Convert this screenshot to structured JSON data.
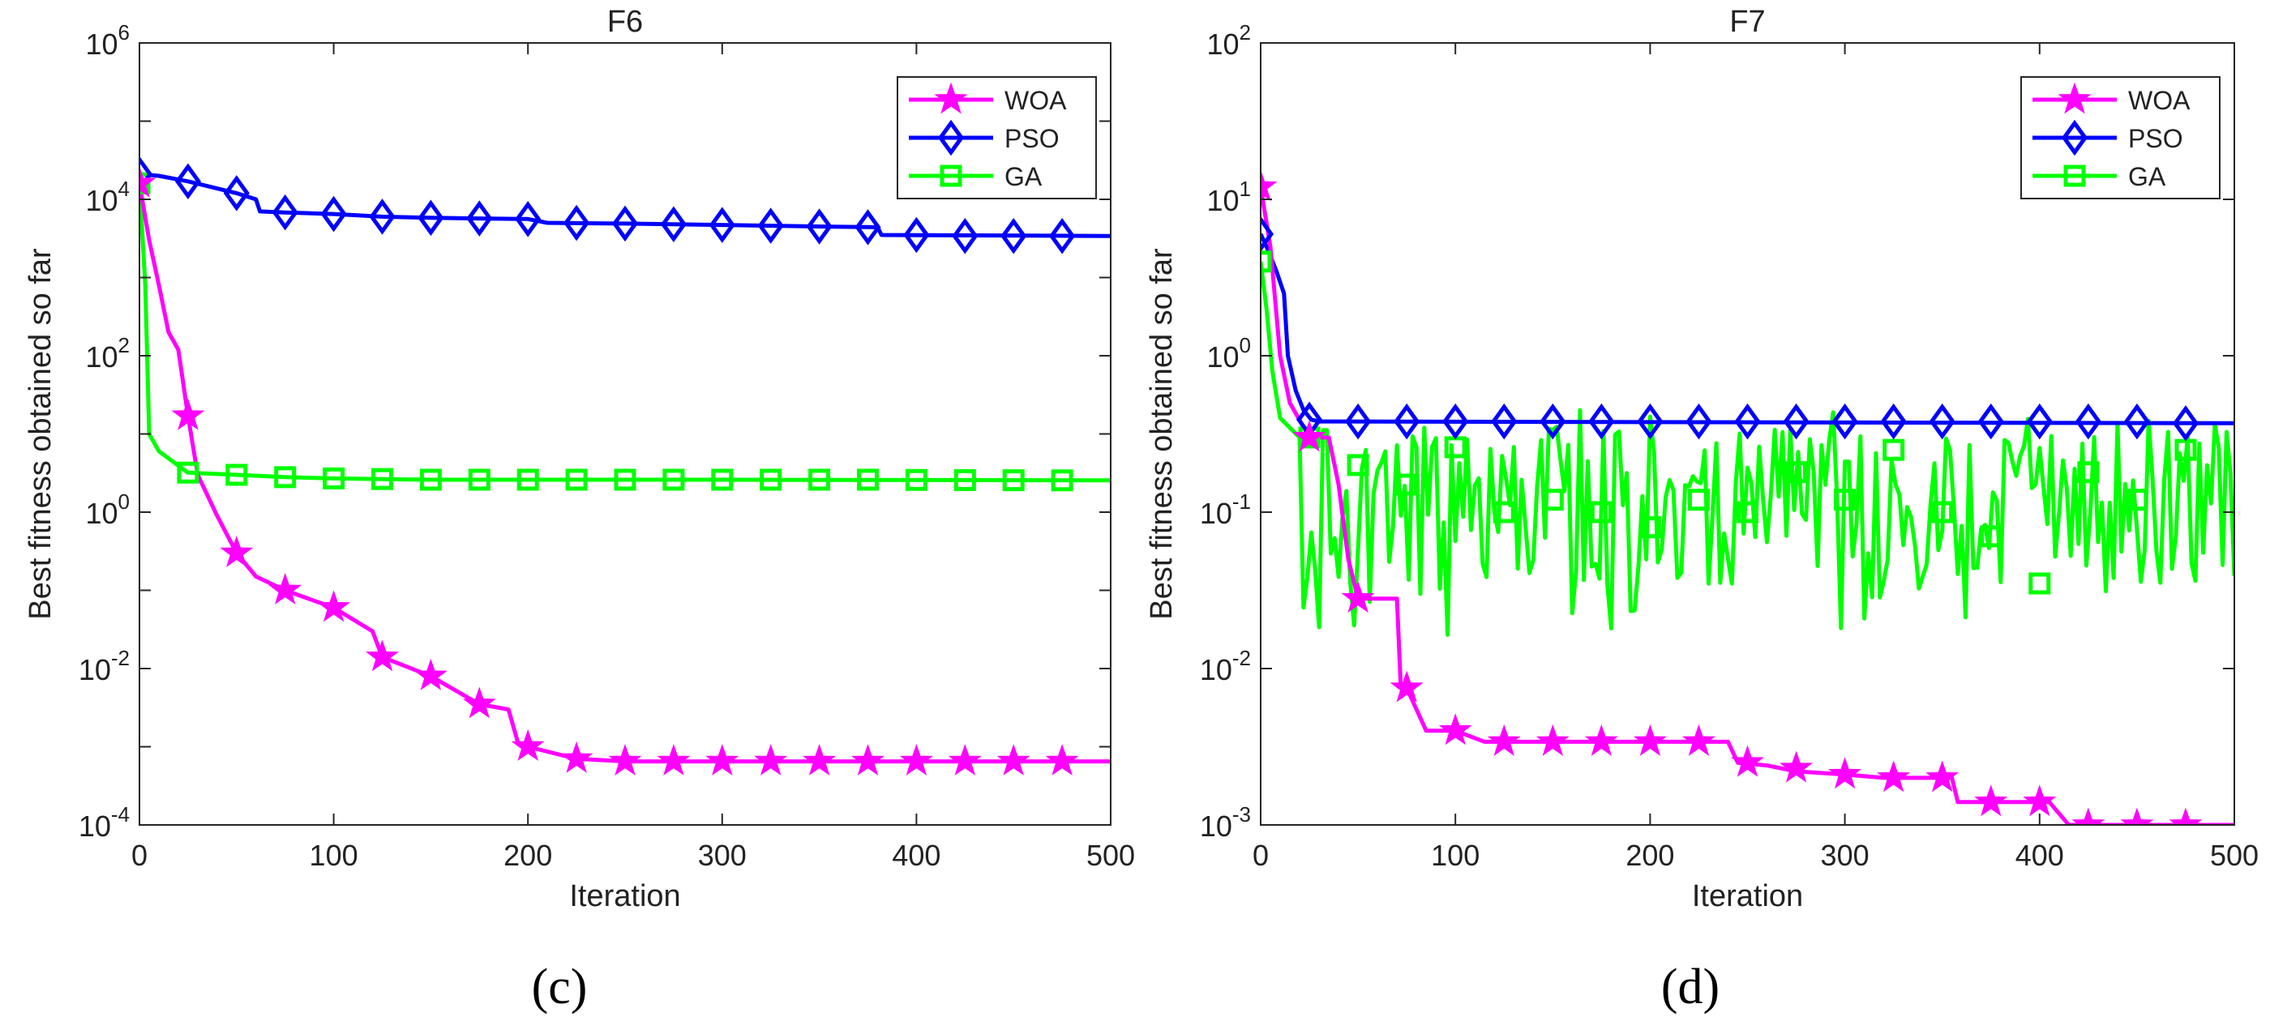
{
  "chart_data": [
    {
      "type": "line",
      "panel_caption": "(c)",
      "title": "F6",
      "xlabel": "Iteration",
      "ylabel": "Best fitness obtained so far",
      "yscale": "log",
      "xlim": [
        0,
        500
      ],
      "ylim": [
        0.0001,
        1000000
      ],
      "xticks": [
        0,
        100,
        200,
        300,
        400,
        500
      ],
      "yticks": [
        {
          "base": "10",
          "exp": "-4"
        },
        {
          "base": "10",
          "exp": "-2"
        },
        {
          "base": "10",
          "exp": "0"
        },
        {
          "base": "10",
          "exp": "2"
        },
        {
          "base": "10",
          "exp": "4"
        },
        {
          "base": "10",
          "exp": "6"
        }
      ],
      "legend": {
        "position": "top-right",
        "entries": [
          "WOA",
          "PSO",
          "GA"
        ]
      },
      "series": [
        {
          "name": "WOA",
          "color": "#ff00ff",
          "marker": "star",
          "points": [
            [
              0,
              16000
            ],
            [
              5,
              3000
            ],
            [
              10,
              800
            ],
            [
              15,
              200
            ],
            [
              20,
              120
            ],
            [
              25,
              17
            ],
            [
              30,
              3
            ],
            [
              40,
              0.9
            ],
            [
              50,
              0.3
            ],
            [
              60,
              0.15
            ],
            [
              75,
              0.1
            ],
            [
              100,
              0.06
            ],
            [
              120,
              0.03
            ],
            [
              125,
              0.014
            ],
            [
              150,
              0.008
            ],
            [
              175,
              0.0035
            ],
            [
              190,
              0.003
            ],
            [
              195,
              0.0011
            ],
            [
              200,
              0.001
            ],
            [
              225,
              0.0007
            ],
            [
              250,
              0.00065
            ],
            [
              500,
              0.00065
            ]
          ],
          "markers": [
            [
              0,
              16000
            ],
            [
              25,
              17
            ],
            [
              50,
              0.3
            ],
            [
              75,
              0.1
            ],
            [
              100,
              0.06
            ],
            [
              125,
              0.014
            ],
            [
              150,
              0.008
            ],
            [
              175,
              0.0035
            ],
            [
              200,
              0.001
            ],
            [
              225,
              0.0007
            ],
            [
              250,
              0.00065
            ],
            [
              275,
              0.00065
            ],
            [
              300,
              0.00065
            ],
            [
              325,
              0.00065
            ],
            [
              350,
              0.00065
            ],
            [
              375,
              0.00065
            ],
            [
              400,
              0.00065
            ],
            [
              425,
              0.00065
            ],
            [
              450,
              0.00065
            ],
            [
              475,
              0.00065
            ]
          ]
        },
        {
          "name": "PSO",
          "color": "#0000ff",
          "marker": "diamond",
          "points": [
            [
              0,
              21000
            ],
            [
              10,
              20000
            ],
            [
              25,
              17000
            ],
            [
              50,
              12000
            ],
            [
              60,
              10000
            ],
            [
              62,
              7000
            ],
            [
              75,
              6800
            ],
            [
              100,
              6500
            ],
            [
              125,
              6000
            ],
            [
              150,
              5800
            ],
            [
              175,
              5700
            ],
            [
              200,
              5600
            ],
            [
              210,
              5000
            ],
            [
              250,
              4900
            ],
            [
              300,
              4700
            ],
            [
              350,
              4500
            ],
            [
              380,
              4400
            ],
            [
              382,
              3500
            ],
            [
              500,
              3400
            ]
          ],
          "markers": [
            [
              0,
              21000
            ],
            [
              25,
              17000
            ],
            [
              50,
              12000
            ],
            [
              75,
              6800
            ],
            [
              100,
              6500
            ],
            [
              125,
              6000
            ],
            [
              150,
              5800
            ],
            [
              175,
              5700
            ],
            [
              200,
              5600
            ],
            [
              225,
              5000
            ],
            [
              250,
              4900
            ],
            [
              275,
              4800
            ],
            [
              300,
              4700
            ],
            [
              325,
              4600
            ],
            [
              350,
              4500
            ],
            [
              375,
              4400
            ],
            [
              400,
              3500
            ],
            [
              425,
              3400
            ],
            [
              450,
              3400
            ],
            [
              475,
              3400
            ]
          ]
        },
        {
          "name": "GA",
          "color": "#00ff00",
          "marker": "square",
          "points": [
            [
              0,
              16000
            ],
            [
              3,
              800
            ],
            [
              5,
              10
            ],
            [
              10,
              6
            ],
            [
              25,
              3.2
            ],
            [
              50,
              3.0
            ],
            [
              75,
              2.8
            ],
            [
              100,
              2.7
            ],
            [
              150,
              2.6
            ],
            [
              300,
              2.6
            ],
            [
              500,
              2.55
            ]
          ],
          "markers": [
            [
              0,
              16000
            ],
            [
              25,
              3.2
            ],
            [
              50,
              3.0
            ],
            [
              75,
              2.8
            ],
            [
              100,
              2.7
            ],
            [
              125,
              2.65
            ],
            [
              150,
              2.6
            ],
            [
              175,
              2.6
            ],
            [
              200,
              2.6
            ],
            [
              225,
              2.6
            ],
            [
              250,
              2.6
            ],
            [
              275,
              2.6
            ],
            [
              300,
              2.6
            ],
            [
              325,
              2.6
            ],
            [
              350,
              2.6
            ],
            [
              375,
              2.6
            ],
            [
              400,
              2.58
            ],
            [
              425,
              2.57
            ],
            [
              450,
              2.56
            ],
            [
              475,
              2.55
            ]
          ]
        }
      ]
    },
    {
      "type": "line",
      "panel_caption": "(d)",
      "title": "F7",
      "xlabel": "Iteration",
      "ylabel": "Best fitness obtained so far",
      "yscale": "log",
      "xlim": [
        0,
        500
      ],
      "ylim": [
        0.001,
        100
      ],
      "xticks": [
        0,
        100,
        200,
        300,
        400,
        500
      ],
      "yticks": [
        {
          "base": "10",
          "exp": "-3"
        },
        {
          "base": "10",
          "exp": "-2"
        },
        {
          "base": "10",
          "exp": "-1"
        },
        {
          "base": "10",
          "exp": "0"
        },
        {
          "base": "10",
          "exp": "1"
        },
        {
          "base": "10",
          "exp": "2"
        }
      ],
      "legend": {
        "position": "top-right",
        "entries": [
          "WOA",
          "PSO",
          "GA"
        ]
      },
      "series": [
        {
          "name": "WOA",
          "color": "#ff00ff",
          "marker": "star",
          "points": [
            [
              0,
              12
            ],
            [
              5,
              5
            ],
            [
              10,
              1
            ],
            [
              15,
              0.5
            ],
            [
              25,
              0.3
            ],
            [
              35,
              0.3
            ],
            [
              40,
              0.15
            ],
            [
              45,
              0.05
            ],
            [
              50,
              0.028
            ],
            [
              70,
              0.028
            ],
            [
              72,
              0.0075
            ],
            [
              75,
              0.0075
            ],
            [
              85,
              0.004
            ],
            [
              100,
              0.004
            ],
            [
              115,
              0.0034
            ],
            [
              240,
              0.0034
            ],
            [
              245,
              0.0025
            ],
            [
              260,
              0.0024
            ],
            [
              275,
              0.0022
            ],
            [
              300,
              0.0021
            ],
            [
              320,
              0.002
            ],
            [
              355,
              0.002
            ],
            [
              358,
              0.0014
            ],
            [
              405,
              0.0014
            ],
            [
              415,
              0.001
            ],
            [
              500,
              0.001
            ]
          ],
          "markers": [
            [
              0,
              12
            ],
            [
              25,
              0.3
            ],
            [
              50,
              0.028
            ],
            [
              75,
              0.0075
            ],
            [
              100,
              0.004
            ],
            [
              125,
              0.0034
            ],
            [
              150,
              0.0034
            ],
            [
              175,
              0.0034
            ],
            [
              200,
              0.0034
            ],
            [
              225,
              0.0034
            ],
            [
              250,
              0.0025
            ],
            [
              275,
              0.0023
            ],
            [
              300,
              0.0021
            ],
            [
              325,
              0.002
            ],
            [
              350,
              0.002
            ],
            [
              375,
              0.0014
            ],
            [
              400,
              0.0014
            ],
            [
              425,
              0.001
            ],
            [
              450,
              0.001
            ],
            [
              475,
              0.001
            ]
          ]
        },
        {
          "name": "PSO",
          "color": "#0000ff",
          "marker": "diamond",
          "points": [
            [
              0,
              6
            ],
            [
              3,
              5
            ],
            [
              8,
              3.5
            ],
            [
              12,
              2.5
            ],
            [
              14,
              1
            ],
            [
              18,
              0.6
            ],
            [
              22,
              0.45
            ],
            [
              26,
              0.39
            ],
            [
              30,
              0.38
            ],
            [
              500,
              0.37
            ]
          ],
          "markers": [
            [
              0,
              6
            ],
            [
              25,
              0.39
            ],
            [
              50,
              0.38
            ],
            [
              75,
              0.38
            ],
            [
              100,
              0.38
            ],
            [
              125,
              0.38
            ],
            [
              150,
              0.38
            ],
            [
              175,
              0.38
            ],
            [
              200,
              0.38
            ],
            [
              225,
              0.38
            ],
            [
              250,
              0.38
            ],
            [
              275,
              0.38
            ],
            [
              300,
              0.38
            ],
            [
              325,
              0.38
            ],
            [
              350,
              0.38
            ],
            [
              375,
              0.38
            ],
            [
              400,
              0.38
            ],
            [
              425,
              0.38
            ],
            [
              450,
              0.38
            ],
            [
              475,
              0.37
            ]
          ]
        },
        {
          "name": "GA",
          "color": "#00ff00",
          "marker": "square",
          "noise_band": [
            0.015,
            0.45
          ],
          "points": [
            [
              0,
              4
            ],
            [
              3,
              2
            ],
            [
              6,
              0.8
            ],
            [
              10,
              0.4
            ],
            [
              20,
              0.3
            ]
          ],
          "markers": [
            [
              0,
              4
            ],
            [
              25,
              0.3
            ],
            [
              50,
              0.2
            ],
            [
              75,
              0.15
            ],
            [
              100,
              0.26
            ],
            [
              125,
              0.1
            ],
            [
              150,
              0.12
            ],
            [
              175,
              0.1
            ],
            [
              200,
              0.08
            ],
            [
              225,
              0.12
            ],
            [
              250,
              0.1
            ],
            [
              275,
              0.18
            ],
            [
              300,
              0.12
            ],
            [
              325,
              0.25
            ],
            [
              350,
              0.1
            ],
            [
              375,
              0.07
            ],
            [
              400,
              0.035
            ],
            [
              425,
              0.18
            ],
            [
              450,
              0.12
            ],
            [
              475,
              0.25
            ]
          ]
        }
      ]
    }
  ]
}
